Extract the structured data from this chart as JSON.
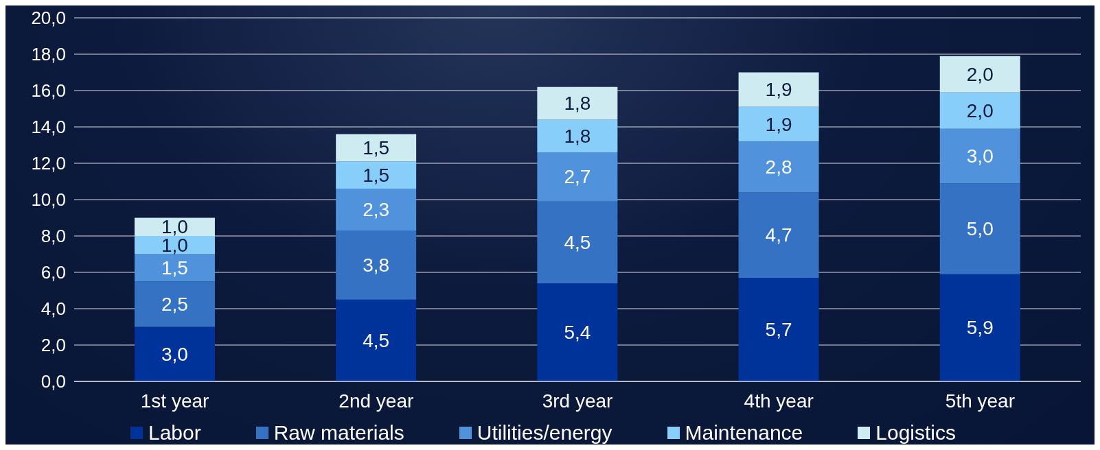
{
  "chart_data": {
    "type": "bar",
    "stacked": true,
    "categories": [
      "1st year",
      "2nd year",
      "3rd year",
      "4th year",
      "5th year"
    ],
    "series": [
      {
        "name": "Labor",
        "color": "#003399",
        "values": [
          3.0,
          4.5,
          5.4,
          5.7,
          5.9
        ],
        "value_labels": [
          "3,0",
          "4,5",
          "5,4",
          "5,7",
          "5,9"
        ]
      },
      {
        "name": "Raw materials",
        "color": "#3572c4",
        "values": [
          2.5,
          3.8,
          4.5,
          4.7,
          5.0
        ],
        "value_labels": [
          "2,5",
          "3,8",
          "4,5",
          "4,7",
          "5,0"
        ]
      },
      {
        "name": "Utilities/energy",
        "color": "#5192dc",
        "values": [
          1.5,
          2.3,
          2.7,
          2.8,
          3.0
        ],
        "value_labels": [
          "1,5",
          "2,3",
          "2,7",
          "2,8",
          "3,0"
        ]
      },
      {
        "name": "Maintenance",
        "color": "#88cefa",
        "values": [
          1.0,
          1.5,
          1.8,
          1.9,
          2.0
        ],
        "value_labels": [
          "1,0",
          "1,5",
          "1,8",
          "1,9",
          "2,0"
        ]
      },
      {
        "name": "Logistics",
        "color": "#cdebf0",
        "values": [
          1.0,
          1.5,
          1.8,
          1.9,
          2.0
        ],
        "value_labels": [
          "1,0",
          "1,5",
          "1,8",
          "1,9",
          "2,0"
        ]
      }
    ],
    "ylim": [
      0,
      20
    ],
    "yticks": [
      {
        "value": 0,
        "label": "0,0"
      },
      {
        "value": 2,
        "label": "2,0"
      },
      {
        "value": 4,
        "label": "4,0"
      },
      {
        "value": 6,
        "label": "6,0"
      },
      {
        "value": 8,
        "label": "8,0"
      },
      {
        "value": 10,
        "label": "10,0"
      },
      {
        "value": 12,
        "label": "12,0"
      },
      {
        "value": 14,
        "label": "14,0"
      },
      {
        "value": 16,
        "label": "16,0"
      },
      {
        "value": 18,
        "label": "18,0"
      },
      {
        "value": 20,
        "label": "20,0"
      }
    ],
    "grid": "y",
    "legend": "bottom"
  }
}
